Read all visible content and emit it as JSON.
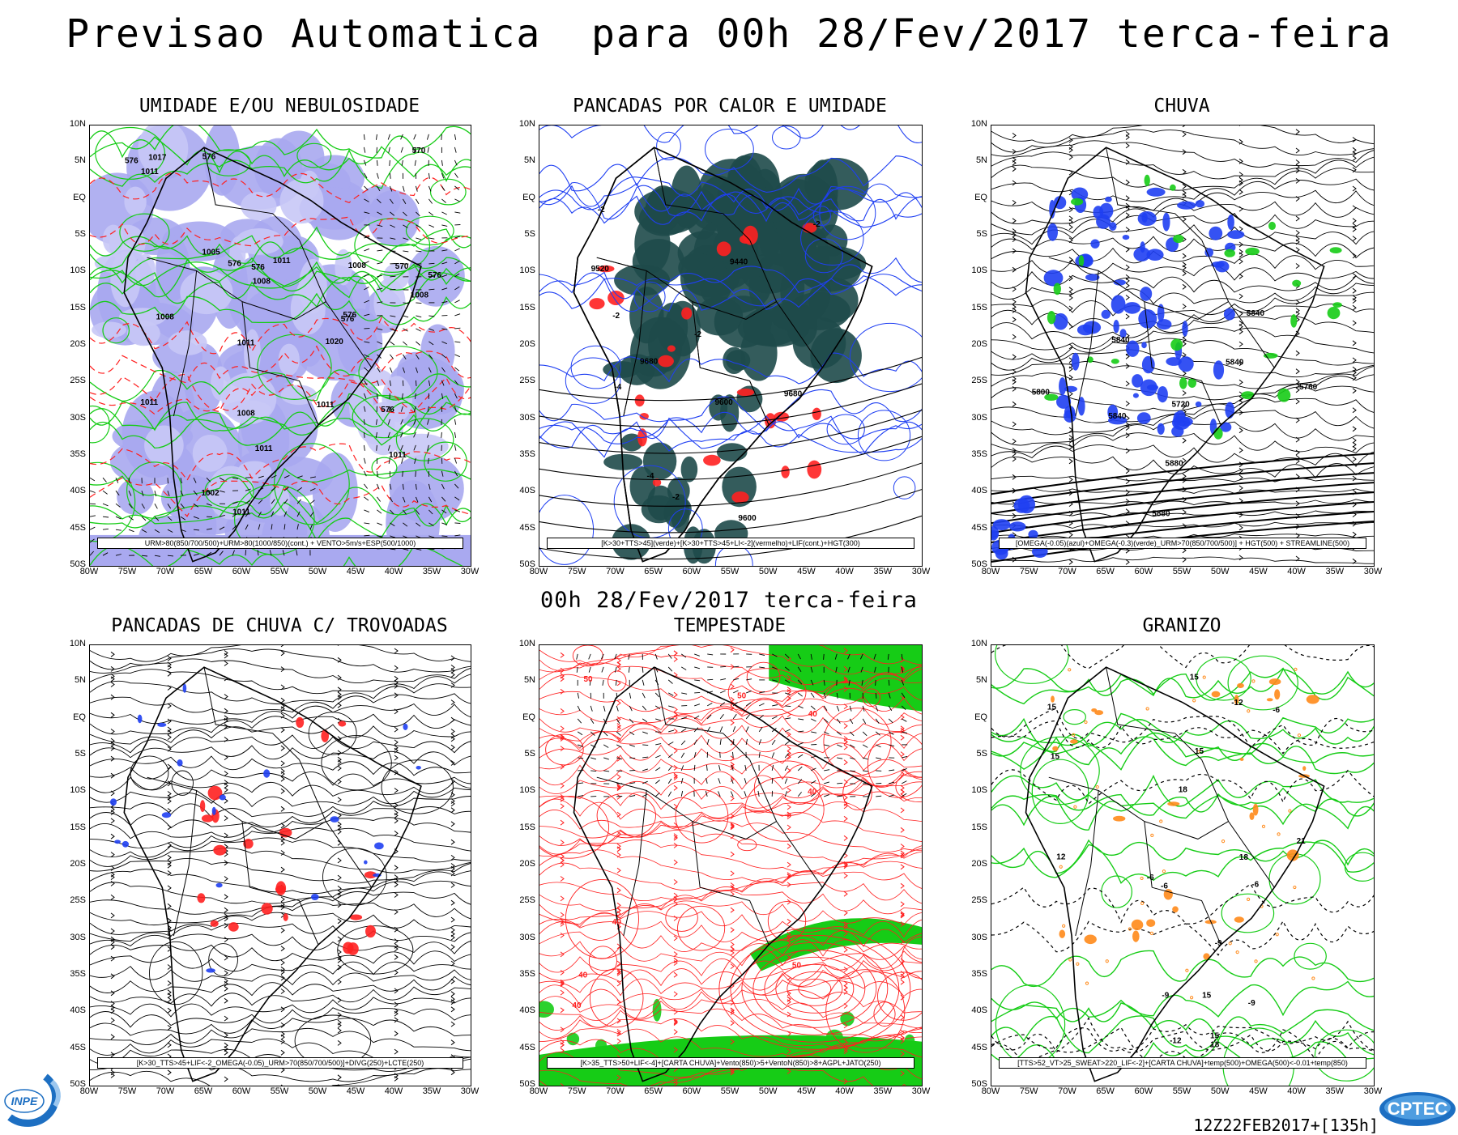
{
  "title": "Previsao Automatica  para 00h 28/Fev/2017 terca-feira",
  "subtitle": "00h 28/Fev/2017 terca-feira",
  "run_info": "12Z22FEB2017+[135h]",
  "logos": {
    "left": "INPE",
    "right": "CPTEC"
  },
  "axes": {
    "y_ticks": [
      "10N",
      "5N",
      "EQ",
      "5S",
      "10S",
      "15S",
      "20S",
      "25S",
      "30S",
      "35S",
      "40S",
      "45S",
      "50S"
    ],
    "x_ticks": [
      "80W",
      "75W",
      "70W",
      "65W",
      "60W",
      "55W",
      "50W",
      "45W",
      "40W",
      "35W",
      "30W"
    ]
  },
  "panels": [
    {
      "title": "UMIDADE E/OU NEBULOSIDADE",
      "legend": "URM>80(850/700/500)+URM>80(1000/850)(cont.) + VENTO>5m/s+ESP(500/1000)",
      "labels": [
        "576",
        "1008",
        "576",
        "1011",
        "1011",
        "576",
        "576",
        "576",
        "1011",
        "1011",
        "1008",
        "1008",
        "1008",
        "576",
        "1011",
        "1011",
        "1017",
        "576",
        "1008",
        "570",
        "576",
        "1020",
        "570",
        "1011",
        "1011",
        "1005",
        "1002"
      ]
    },
    {
      "title": "PANCADAS POR CALOR E UMIDADE",
      "legend": "[K>30+TTS>45](verde)+[K>30+TTS>45+LI<-2](vermelho)+LIF(cont.)+HGT(300)",
      "labels": [
        "9680",
        "9680",
        "9600",
        "9600",
        "9520",
        "9440",
        "-2",
        "-2",
        "-2",
        "-2",
        "-4",
        "-4",
        "-2"
      ]
    },
    {
      "title": "CHUVA",
      "legend": "[OMEGA(-0.05)(azul)+OMEGA(-0.3)(verde)_URM>70(850/700/500)] + HGT(500) + STREAMLINE(500)",
      "labels": [
        "5880",
        "5840",
        "5840",
        "5880",
        "5840",
        "5840",
        "5800",
        "5760",
        "5720"
      ]
    },
    {
      "title": "PANCADAS DE CHUVA C/ TROVOADAS",
      "legend": "[K>30_TTS>45+LIF<-2_OMEGA(-0.05)_URM>70(850/700/500)]+DIVG(250)+LCTE(250)",
      "labels": []
    },
    {
      "title": "TEMPESTADE",
      "legend": "[K>35_TTS>50+LIF<-4]+[CARTA CHUVA]+Vento(850)>5+VentoN(850)>8+AGPL+JATO(250)",
      "labels": [
        "40",
        "50",
        "50",
        "40",
        "40",
        "40",
        "50",
        "40"
      ]
    },
    {
      "title": "GRANIZO",
      "legend": "[TTS>52_VT>25_SWEAT>220_LIF<-2]+[CARTA CHUVA]+temp(500)+OMEGA(500)<-0.01+temp(850)",
      "labels": [
        "-6",
        "-6",
        "-6",
        "-6",
        "18",
        "15",
        "15",
        "15",
        "15",
        "15",
        "18",
        "-9",
        "-9",
        "-9",
        "12",
        "15",
        "18",
        "21",
        "-12",
        "-12"
      ]
    }
  ],
  "colors": {
    "text": "#000000",
    "blue": "#1f3ff2",
    "red": "#ff2020",
    "green": "#16cc16",
    "purple": "#a9a9f0",
    "teal": "#1e4a4a",
    "orange": "#ff8a1a"
  }
}
